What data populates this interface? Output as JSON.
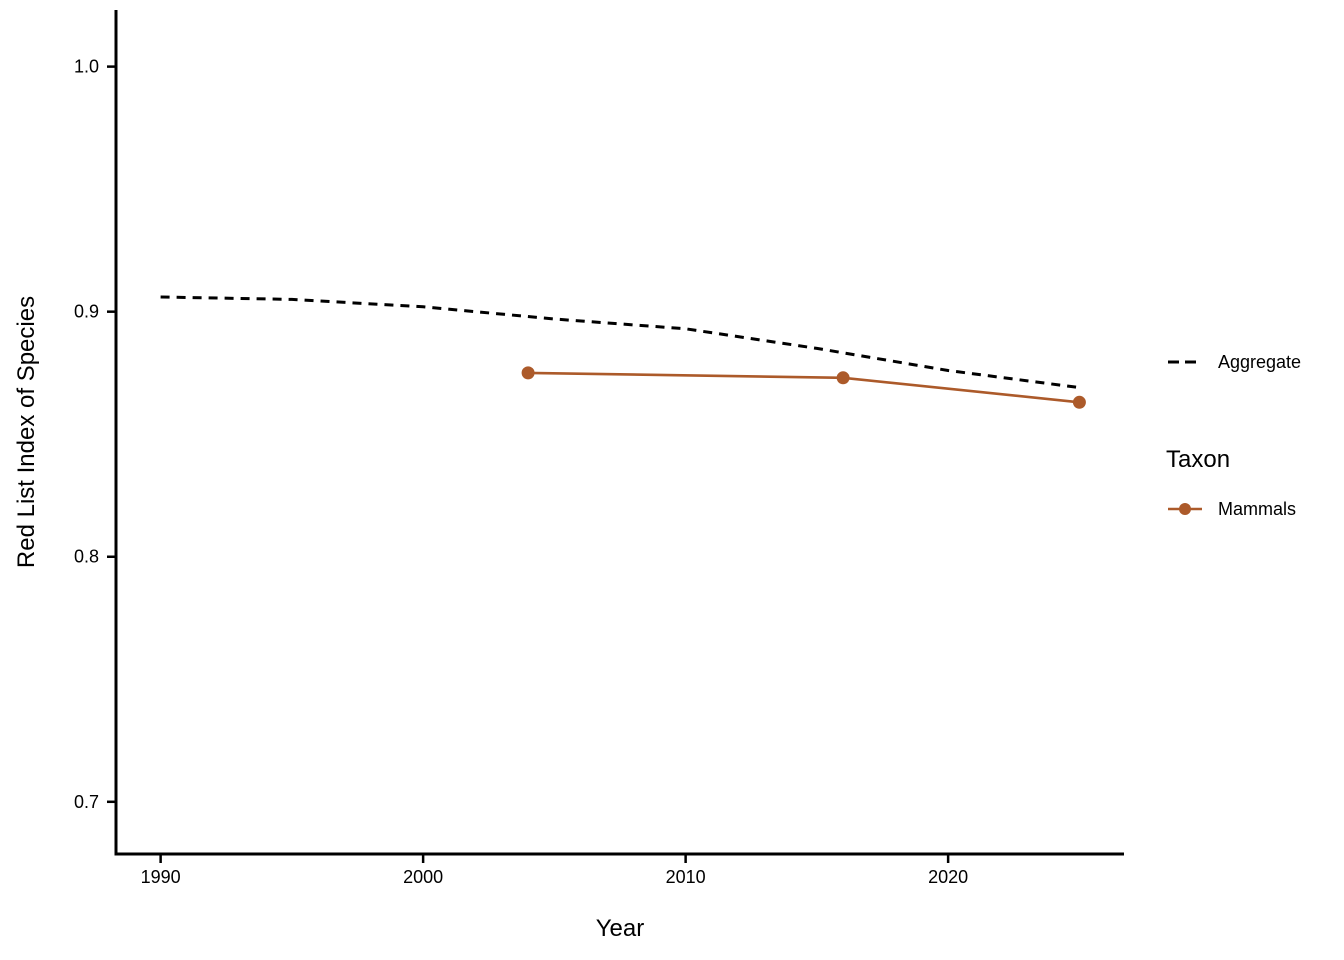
{
  "chart_data": {
    "type": "line",
    "title": "",
    "xlabel": "Year",
    "ylabel": "Red List Index of Species",
    "xlim": [
      1988.3,
      2026.7
    ],
    "ylim": [
      0.6787,
      1.0231
    ],
    "grid": false,
    "legend_position": "right",
    "x_ticks": [
      {
        "value": 1990,
        "label": "1990"
      },
      {
        "value": 2000,
        "label": "2000"
      },
      {
        "value": 2010,
        "label": "2010"
      },
      {
        "value": 2020,
        "label": "2020"
      }
    ],
    "y_ticks": [
      {
        "value": 1.0,
        "label": "1.0"
      },
      {
        "value": 0.9,
        "label": "0.9"
      },
      {
        "value": 0.8,
        "label": "0.8"
      },
      {
        "value": 0.7,
        "label": "0.7"
      }
    ],
    "series": [
      {
        "name": "Aggregate",
        "style": "dashed",
        "color": "#000000",
        "show_points": false,
        "x": [
          1990,
          1995,
          2000,
          2005,
          2010,
          2015,
          2020,
          2025
        ],
        "y": [
          0.906,
          0.905,
          0.902,
          0.897,
          0.893,
          0.885,
          0.876,
          0.869
        ]
      },
      {
        "name": "Mammals",
        "style": "solid",
        "color": "#AC5A2A",
        "show_points": true,
        "x": [
          2004,
          2016,
          2025
        ],
        "y": [
          0.875,
          0.873,
          0.863
        ]
      }
    ],
    "legend": {
      "taxon_title": "Taxon"
    }
  }
}
